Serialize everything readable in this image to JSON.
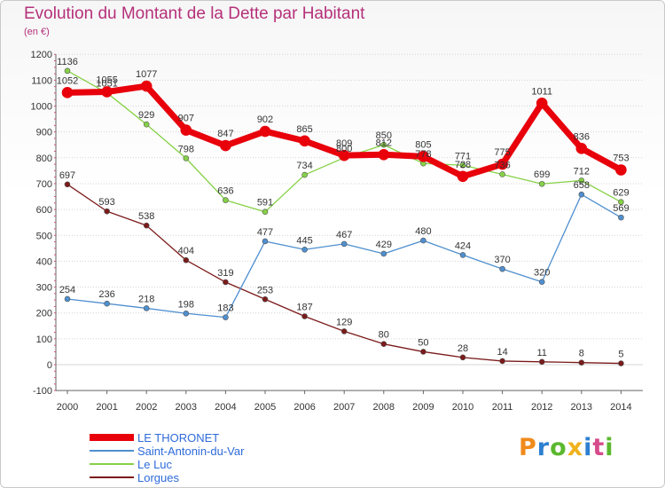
{
  "header": {
    "title": "Evolution du Montant de la Dette par Habitant",
    "subtitle": "(en €)"
  },
  "logo": {
    "text": "Proxiti"
  },
  "colors": {
    "title": "#b5317a",
    "legend_text": "#2e6bd9"
  },
  "chart_data": {
    "type": "line",
    "title": "Evolution du Montant de la Dette par Habitant",
    "ylabel": "(en €)",
    "xlabel": "",
    "ylim": [
      -100,
      1200
    ],
    "yticks": [
      -100,
      0,
      100,
      200,
      300,
      400,
      500,
      600,
      700,
      800,
      900,
      1000,
      1100,
      1200
    ],
    "grid": "horizontal",
    "legend_position": "bottom-left",
    "categories": [
      "2000",
      "2001",
      "2002",
      "2003",
      "2004",
      "2005",
      "2006",
      "2007",
      "2008",
      "2009",
      "2010",
      "2011",
      "2012",
      "2013",
      "2014"
    ],
    "series": [
      {
        "name": "Lorgues",
        "color": "#7b1a1a",
        "width": 1.3,
        "values": [
          697,
          593,
          538,
          404,
          319,
          253,
          187,
          129,
          80,
          50,
          28,
          14,
          11,
          8,
          5
        ],
        "labels": [
          "697",
          "593",
          "538",
          "404",
          "319",
          "253",
          "187",
          "129",
          "80",
          "50",
          "28",
          "14",
          "11",
          "8",
          "5"
        ]
      },
      {
        "name": "Saint-Antonin-du-Var",
        "color": "#4f8fcf",
        "width": 1.3,
        "values": [
          254,
          236,
          218,
          198,
          183,
          477,
          445,
          467,
          429,
          480,
          424,
          370,
          320,
          658,
          569
        ],
        "labels": [
          "254",
          "236",
          "218",
          "198",
          "183",
          "477",
          "445",
          "467",
          "429",
          "480",
          "424",
          "370",
          "320",
          "658",
          "569"
        ]
      },
      {
        "name": "Le Luc",
        "color": "#86d146",
        "width": 1.3,
        "values": [
          1136,
          1051,
          929,
          798,
          636,
          591,
          734,
          800,
          850,
          778,
          771,
          736,
          699,
          712,
          629
        ],
        "labels": [
          "1136",
          "1051",
          "929",
          "798",
          "636",
          "591",
          "734",
          "800",
          "850",
          "778",
          "771",
          "736",
          "699",
          "712",
          "629"
        ]
      },
      {
        "name": "LE THORONET",
        "color": "#e8000b",
        "width": 7,
        "values": [
          1052,
          1055,
          1077,
          907,
          847,
          902,
          865,
          809,
          812,
          805,
          728,
          775,
          1011,
          836,
          753
        ],
        "labels": [
          "1052",
          "1055",
          "1077",
          "907",
          "847",
          "902",
          "865",
          "809",
          "812",
          "805",
          "728",
          "775",
          "1011",
          "836",
          "753"
        ]
      }
    ]
  }
}
